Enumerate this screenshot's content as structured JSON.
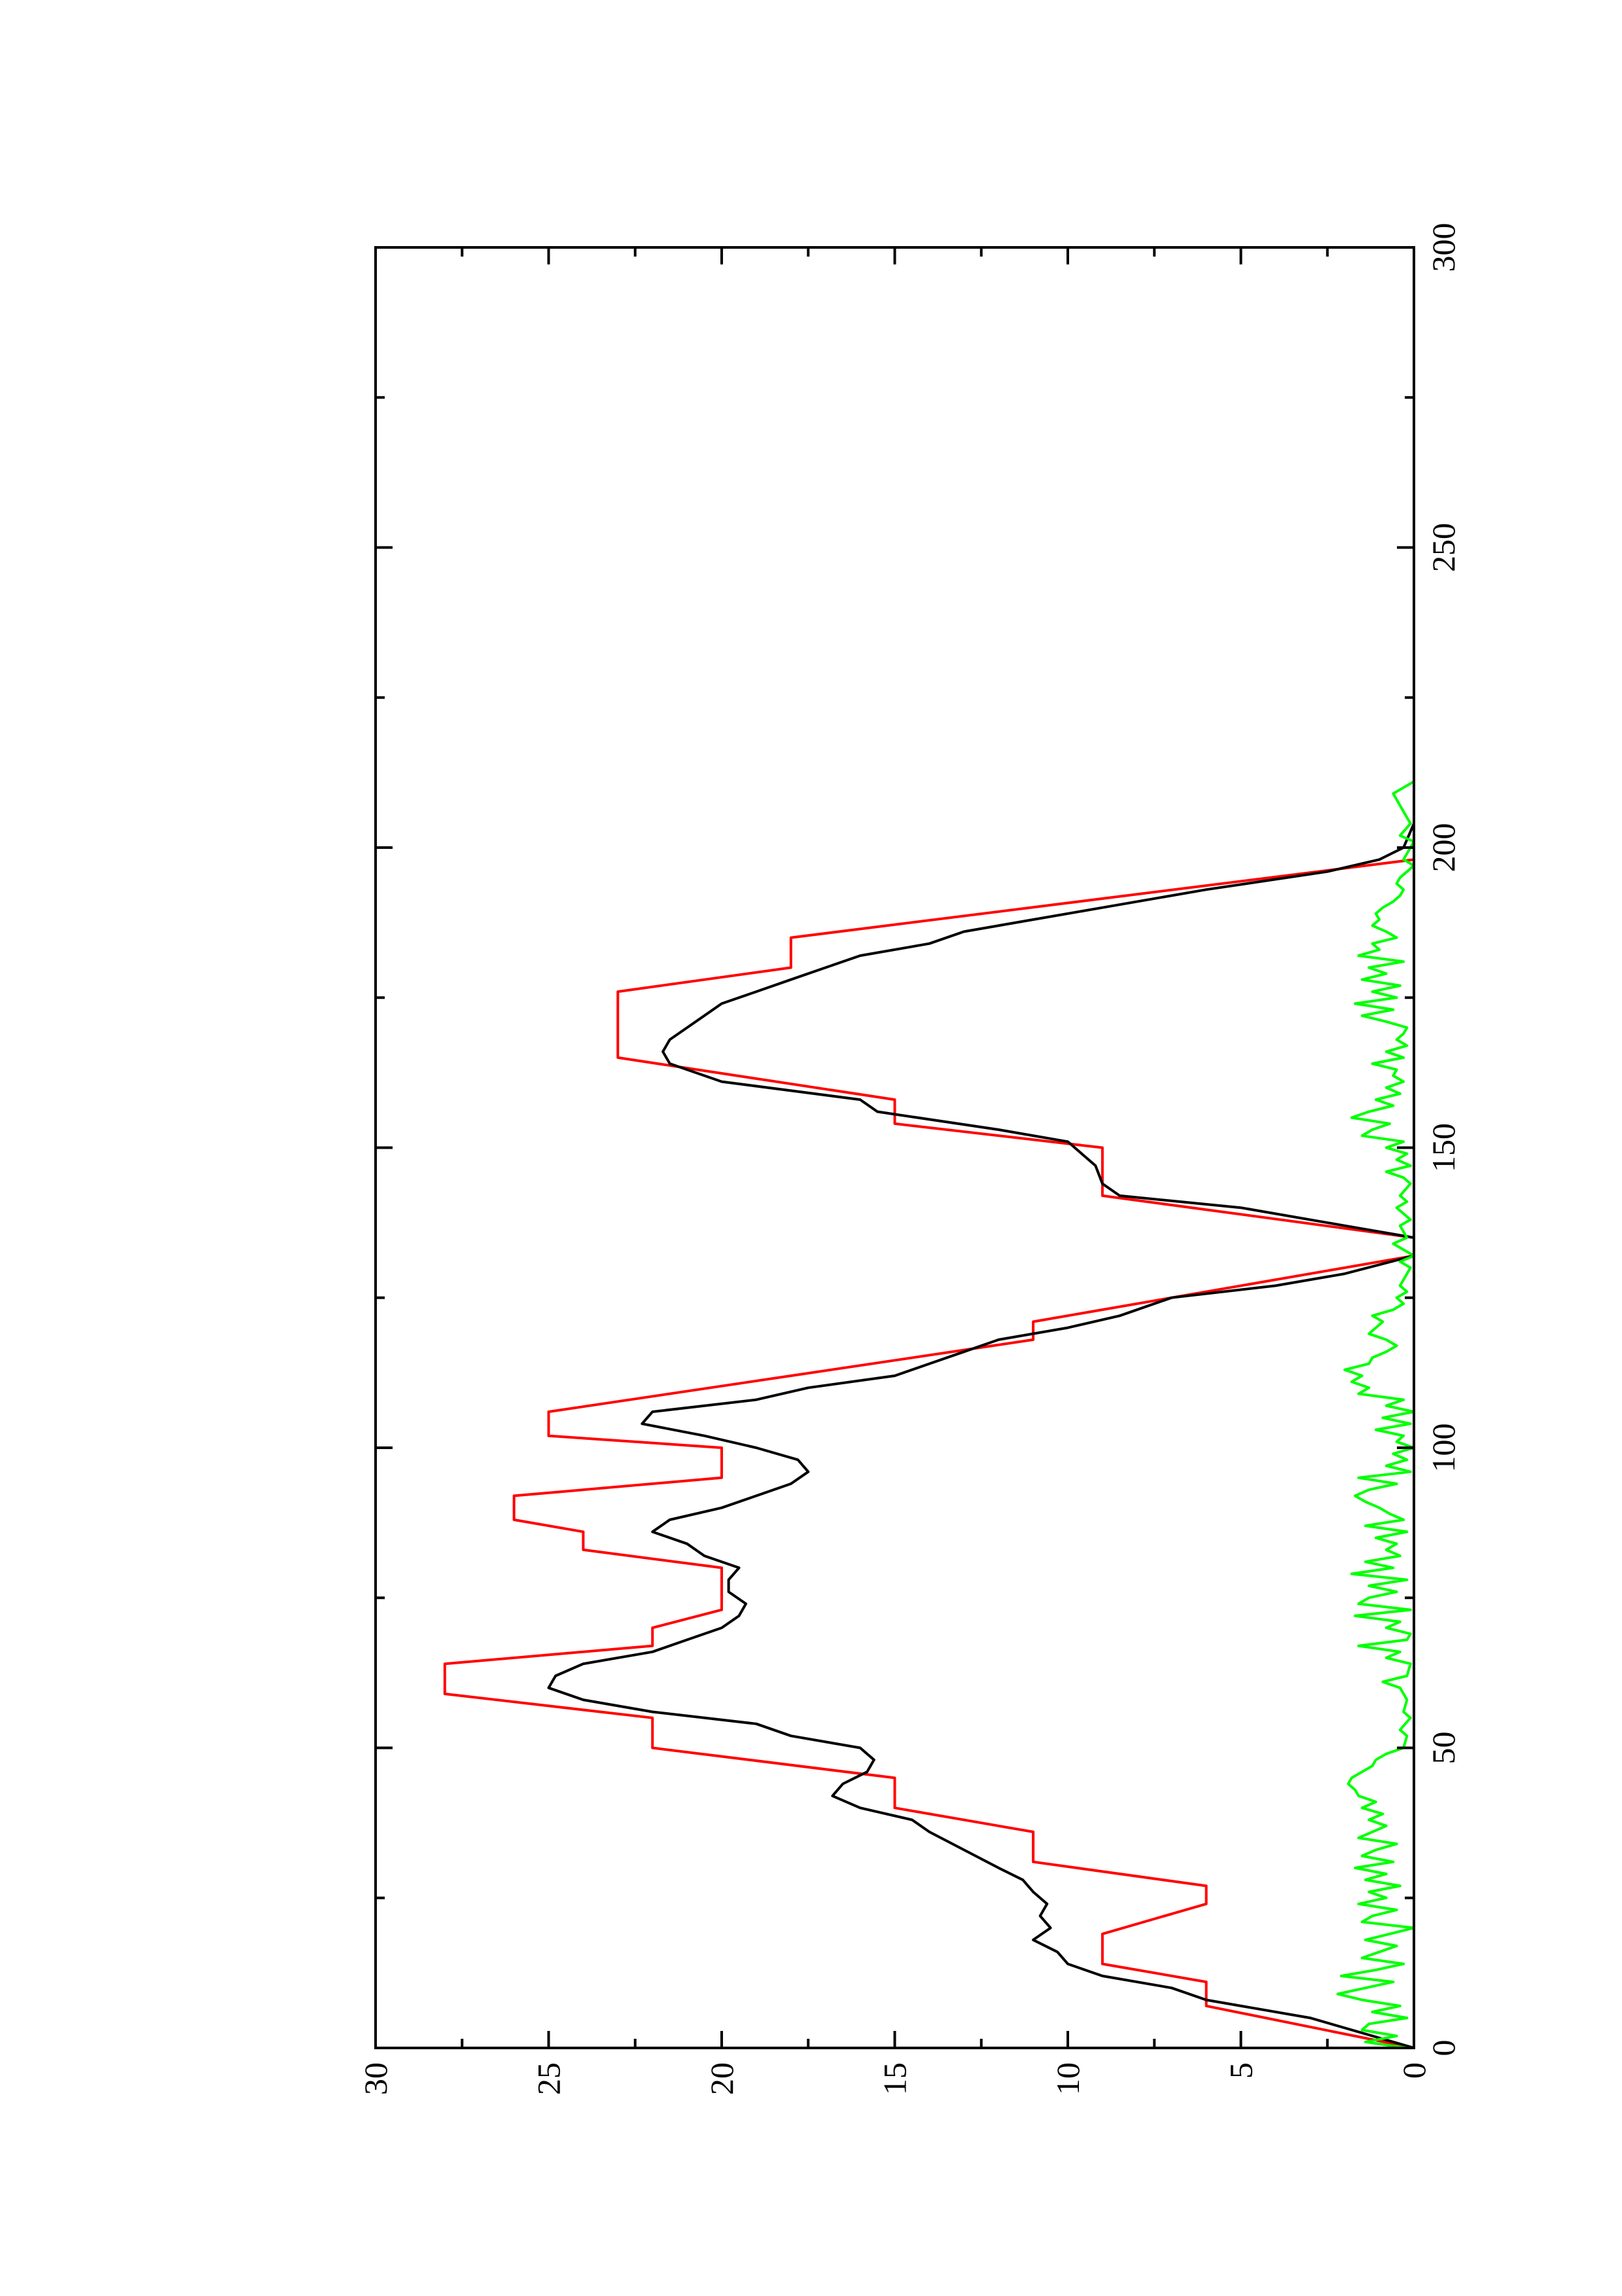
{
  "chart_data": {
    "type": "line",
    "title": "",
    "xlabel": "",
    "ylabel": "",
    "xlim": [
      0,
      300
    ],
    "ylim": [
      0,
      30
    ],
    "x_ticks": [
      "0",
      "50",
      "100",
      "150",
      "200",
      "250",
      "300"
    ],
    "y_ticks": [
      "0",
      "5",
      "10",
      "15",
      "20",
      "25",
      "30"
    ],
    "x_minor_step": 25,
    "y_minor_step": 2.5,
    "rotation": "page rotated 90 degrees counter-clockwise",
    "grid": false,
    "legend": "none",
    "series": [
      {
        "color": "#ff0000",
        "points": [
          [
            0,
            0
          ],
          [
            7,
            6
          ],
          [
            11,
            6
          ],
          [
            14,
            9
          ],
          [
            19,
            9
          ],
          [
            24,
            6
          ],
          [
            27,
            6
          ],
          [
            31,
            11
          ],
          [
            36,
            11
          ],
          [
            40,
            15
          ],
          [
            45,
            15
          ],
          [
            50,
            22
          ],
          [
            55,
            22
          ],
          [
            59,
            28
          ],
          [
            64,
            28
          ],
          [
            67,
            22
          ],
          [
            70,
            22
          ],
          [
            73,
            20
          ],
          [
            80,
            20
          ],
          [
            83,
            24
          ],
          [
            86,
            24
          ],
          [
            88,
            26
          ],
          [
            92,
            26
          ],
          [
            95,
            20
          ],
          [
            100,
            20
          ],
          [
            102,
            25
          ],
          [
            106,
            25
          ],
          [
            112,
            18
          ],
          [
            118,
            11
          ],
          [
            121,
            11
          ],
          [
            132,
            0
          ],
          [
            135,
            0
          ],
          [
            142,
            9
          ],
          [
            150,
            9
          ],
          [
            154,
            15
          ],
          [
            158,
            15
          ],
          [
            165,
            23
          ],
          [
            176,
            23
          ],
          [
            180,
            18
          ],
          [
            185,
            18
          ],
          [
            198,
            0
          ]
        ]
      },
      {
        "color": "#000000",
        "points": [
          [
            0,
            0
          ],
          [
            5,
            3
          ],
          [
            8,
            6
          ],
          [
            10,
            7
          ],
          [
            12,
            9
          ],
          [
            14,
            10
          ],
          [
            16,
            10.3
          ],
          [
            18,
            11
          ],
          [
            20,
            10.5
          ],
          [
            22,
            10.8
          ],
          [
            24,
            10.6
          ],
          [
            26,
            11
          ],
          [
            28,
            11.3
          ],
          [
            30,
            12
          ],
          [
            33,
            13
          ],
          [
            36,
            14
          ],
          [
            38,
            14.5
          ],
          [
            40,
            16
          ],
          [
            42,
            16.8
          ],
          [
            44,
            16.5
          ],
          [
            46,
            15.8
          ],
          [
            48,
            15.6
          ],
          [
            50,
            16
          ],
          [
            52,
            18
          ],
          [
            54,
            19
          ],
          [
            56,
            22
          ],
          [
            58,
            24
          ],
          [
            60,
            25
          ],
          [
            62,
            24.8
          ],
          [
            64,
            24
          ],
          [
            66,
            22
          ],
          [
            68,
            21
          ],
          [
            70,
            20
          ],
          [
            72,
            19.5
          ],
          [
            74,
            19.3
          ],
          [
            76,
            19.8
          ],
          [
            78,
            19.8
          ],
          [
            80,
            19.5
          ],
          [
            82,
            20.5
          ],
          [
            84,
            21
          ],
          [
            86,
            22
          ],
          [
            88,
            21.5
          ],
          [
            90,
            20
          ],
          [
            92,
            19
          ],
          [
            94,
            18
          ],
          [
            96,
            17.5
          ],
          [
            98,
            17.8
          ],
          [
            100,
            19
          ],
          [
            102,
            20.5
          ],
          [
            104,
            22.3
          ],
          [
            106,
            22
          ],
          [
            108,
            19
          ],
          [
            110,
            17.5
          ],
          [
            112,
            15
          ],
          [
            114,
            14
          ],
          [
            116,
            13
          ],
          [
            118,
            12
          ],
          [
            120,
            10
          ],
          [
            122,
            8.5
          ],
          [
            125,
            7
          ],
          [
            127,
            4
          ],
          [
            129,
            2
          ],
          [
            132,
            0
          ],
          [
            135,
            0
          ],
          [
            137,
            2
          ],
          [
            140,
            5
          ],
          [
            142,
            8.5
          ],
          [
            144,
            9
          ],
          [
            147,
            9.2
          ],
          [
            149,
            9.6
          ],
          [
            151,
            10
          ],
          [
            153,
            12
          ],
          [
            156,
            15.5
          ],
          [
            158,
            16
          ],
          [
            161,
            20
          ],
          [
            164,
            21.5
          ],
          [
            166,
            21.7
          ],
          [
            168,
            21.5
          ],
          [
            170,
            21
          ],
          [
            172,
            20.5
          ],
          [
            174,
            20
          ],
          [
            176,
            19
          ],
          [
            178,
            18
          ],
          [
            180,
            17
          ],
          [
            182,
            16
          ],
          [
            184,
            14
          ],
          [
            186,
            13
          ],
          [
            188,
            11
          ],
          [
            190,
            9
          ],
          [
            193,
            6
          ],
          [
            196,
            2.5
          ],
          [
            198,
            1
          ],
          [
            200,
            0.3
          ],
          [
            204,
            0
          ],
          [
            210,
            0
          ]
        ]
      },
      {
        "color": "#00ff00",
        "points": [
          [
            0,
            0.2
          ],
          [
            1,
            1.4
          ],
          [
            2,
            0.5
          ],
          [
            3,
            1.5
          ],
          [
            4,
            1.3
          ],
          [
            5,
            0.2
          ],
          [
            6,
            1.2
          ],
          [
            7,
            0.4
          ],
          [
            8,
            1.5
          ],
          [
            9,
            2.2
          ],
          [
            10,
            1.4
          ],
          [
            11,
            0.6
          ],
          [
            12,
            2.1
          ],
          [
            13,
            1.1
          ],
          [
            14,
            0.3
          ],
          [
            15,
            1.5
          ],
          [
            16,
            1
          ],
          [
            17,
            0.5
          ],
          [
            18,
            1.4
          ],
          [
            19,
            0.7
          ],
          [
            20,
            0
          ],
          [
            21,
            1.5
          ],
          [
            22,
            1.2
          ],
          [
            23,
            0.5
          ],
          [
            24,
            1.6
          ],
          [
            25,
            0.8
          ],
          [
            26,
            1.3
          ],
          [
            27,
            0.4
          ],
          [
            28,
            1.4
          ],
          [
            29,
            0.8
          ],
          [
            30,
            1.7
          ],
          [
            31,
            0.6
          ],
          [
            32,
            1.5
          ],
          [
            33,
            1.1
          ],
          [
            34,
            0.5
          ],
          [
            35,
            1.6
          ],
          [
            36,
            1.2
          ],
          [
            37,
            0.8
          ],
          [
            38,
            1.3
          ],
          [
            39,
            0.9
          ],
          [
            40,
            1.5
          ],
          [
            41,
            1.1
          ],
          [
            42,
            1.6
          ],
          [
            43,
            1.7
          ],
          [
            44,
            1.9
          ],
          [
            45,
            1.8
          ],
          [
            46,
            1.5
          ],
          [
            47,
            1.2
          ],
          [
            48,
            1.1
          ],
          [
            49,
            0.8
          ],
          [
            50,
            0.3
          ],
          [
            52,
            0.2
          ],
          [
            53,
            0.4
          ],
          [
            55,
            0.1
          ],
          [
            56,
            0.3
          ],
          [
            58,
            0.2
          ],
          [
            60,
            0.4
          ],
          [
            61,
            0.9
          ],
          [
            62,
            0.2
          ],
          [
            64,
            0.1
          ],
          [
            65,
            0.8
          ],
          [
            66,
            0.4
          ],
          [
            67,
            1.6
          ],
          [
            68,
            0.2
          ],
          [
            69,
            0.1
          ],
          [
            70,
            0.8
          ],
          [
            71,
            0.4
          ],
          [
            72,
            1.7
          ],
          [
            73,
            0.1
          ],
          [
            74,
            1.6
          ],
          [
            75,
            1.3
          ],
          [
            76,
            0.5
          ],
          [
            77,
            1.3
          ],
          [
            78,
            0.2
          ],
          [
            79,
            1.8
          ],
          [
            80,
            0.6
          ],
          [
            81,
            1.4
          ],
          [
            82,
            0.4
          ],
          [
            83,
            0.8
          ],
          [
            84,
            0.5
          ],
          [
            85,
            1.1
          ],
          [
            86,
            0.2
          ],
          [
            87,
            1.4
          ],
          [
            88,
            0.3
          ],
          [
            89,
            0.7
          ],
          [
            90,
            1
          ],
          [
            91,
            1.4
          ],
          [
            92,
            1.7
          ],
          [
            93,
            1.3
          ],
          [
            94,
            0.5
          ],
          [
            95,
            1.6
          ],
          [
            96,
            0.1
          ],
          [
            97,
            0.8
          ],
          [
            98,
            0.2
          ],
          [
            99,
            0.6
          ],
          [
            100,
            0
          ],
          [
            101,
            0.5
          ],
          [
            102,
            0.3
          ],
          [
            103,
            1.1
          ],
          [
            104,
            0.1
          ],
          [
            105,
            0.9
          ],
          [
            106,
            0
          ],
          [
            107,
            0.8
          ],
          [
            108,
            0.3
          ],
          [
            109,
            1.6
          ],
          [
            110,
            1.3
          ],
          [
            111,
            1.8
          ],
          [
            112,
            1.5
          ],
          [
            113,
            2
          ],
          [
            114,
            1.3
          ],
          [
            115,
            1.2
          ],
          [
            116,
            0.8
          ],
          [
            117,
            0.5
          ],
          [
            118,
            0.8
          ],
          [
            119,
            1.3
          ],
          [
            120,
            1.1
          ],
          [
            121,
            0.9
          ],
          [
            122,
            1.2
          ],
          [
            123,
            0.6
          ],
          [
            124,
            0.3
          ],
          [
            125,
            0.5
          ],
          [
            126,
            0.2
          ],
          [
            127,
            0.4
          ],
          [
            128,
            0.3
          ],
          [
            130,
            0.1
          ],
          [
            131,
            0.4
          ],
          [
            132,
            0
          ],
          [
            134,
            0.6
          ],
          [
            135,
            0.2
          ],
          [
            137,
            0.4
          ],
          [
            138,
            0.1
          ],
          [
            140,
            0.5
          ],
          [
            141,
            0.2
          ],
          [
            142,
            0.4
          ],
          [
            144,
            0.1
          ],
          [
            145,
            0.3
          ],
          [
            146,
            0.8
          ],
          [
            147,
            0.1
          ],
          [
            148,
            0.5
          ],
          [
            149,
            0.2
          ],
          [
            150,
            0.8
          ],
          [
            151,
            0.3
          ],
          [
            152,
            1.5
          ],
          [
            153,
            1.2
          ],
          [
            154,
            0.7
          ],
          [
            155,
            1.8
          ],
          [
            156,
            1.3
          ],
          [
            157,
            0.6
          ],
          [
            158,
            1.1
          ],
          [
            159,
            0.4
          ],
          [
            160,
            0.8
          ],
          [
            161,
            0.3
          ],
          [
            162,
            0.6
          ],
          [
            163,
            0.5
          ],
          [
            164,
            1.2
          ],
          [
            165,
            0.3
          ],
          [
            166,
            0.8
          ],
          [
            167,
            0.2
          ],
          [
            168,
            0.5
          ],
          [
            169,
            0.3
          ],
          [
            170,
            0.2
          ],
          [
            171,
            0.8
          ],
          [
            172,
            1.5
          ],
          [
            173,
            0.6
          ],
          [
            174,
            1.7
          ],
          [
            175,
            0.5
          ],
          [
            176,
            1.2
          ],
          [
            177,
            0.4
          ],
          [
            178,
            1.5
          ],
          [
            179,
            0.8
          ],
          [
            180,
            1.3
          ],
          [
            181,
            0.3
          ],
          [
            182,
            1.6
          ],
          [
            183,
            1
          ],
          [
            184,
            1.2
          ],
          [
            185,
            0.5
          ],
          [
            186,
            0.8
          ],
          [
            187,
            1.2
          ],
          [
            188,
            1
          ],
          [
            189,
            1.1
          ],
          [
            190,
            0.9
          ],
          [
            191,
            0.6
          ],
          [
            192,
            0.4
          ],
          [
            193,
            0.3
          ],
          [
            194,
            0.5
          ],
          [
            195,
            0.4
          ],
          [
            196,
            0.2
          ],
          [
            197,
            0
          ],
          [
            198,
            0.3
          ],
          [
            200,
            0.1
          ],
          [
            201,
            0
          ],
          [
            202,
            0.4
          ],
          [
            204,
            0.1
          ],
          [
            206,
            0.3
          ],
          [
            208,
            0.5
          ],
          [
            209,
            0.6
          ],
          [
            210,
            0.3
          ],
          [
            211,
            0
          ]
        ]
      }
    ]
  }
}
